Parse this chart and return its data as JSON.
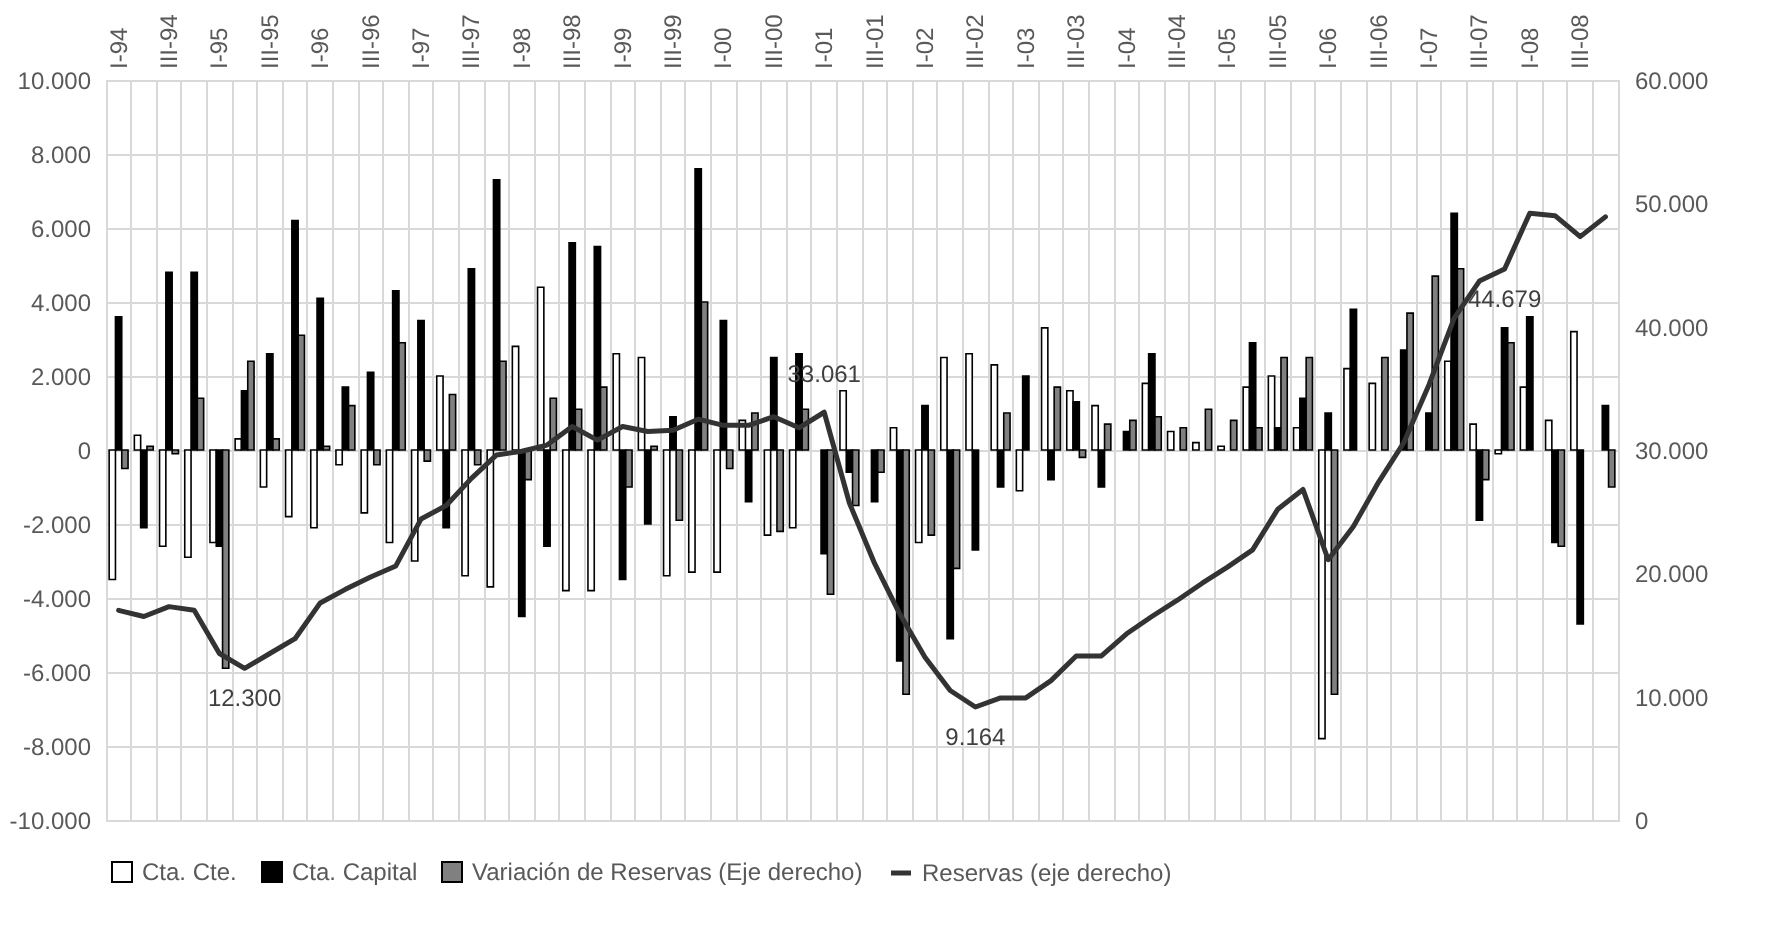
{
  "chart_data": {
    "type": "bar",
    "categories": [
      "I-94",
      null,
      "III-94",
      null,
      "I-95",
      null,
      "III-95",
      null,
      "I-96",
      null,
      "III-96",
      null,
      "I-97",
      null,
      "III-97",
      null,
      "I-98",
      null,
      "III-98",
      null,
      "I-99",
      null,
      "III-99",
      null,
      "I-00",
      null,
      "III-00",
      null,
      "I-01",
      null,
      "III-01",
      null,
      "I-02",
      null,
      "III-02",
      null,
      "I-03",
      null,
      "III-03",
      null,
      "I-04",
      null,
      "III-04",
      null,
      "I-05",
      null,
      "III-05",
      null,
      "I-06",
      null,
      "III-06",
      null,
      "I-07",
      null,
      "III-07",
      null,
      "I-08",
      null,
      "III-08",
      null
    ],
    "series": [
      {
        "name": "Cta. Cte.",
        "color": "#ffffff",
        "values": [
          -3500,
          400,
          -2600,
          -2900,
          -2500,
          300,
          -1000,
          -1800,
          -2100,
          -400,
          -1700,
          -2500,
          -3000,
          2000,
          -3400,
          -3700,
          2800,
          4400,
          -3800,
          -3800,
          2600,
          2500,
          -3400,
          -3300,
          -3300,
          800,
          -2300,
          -2100,
          0,
          1600,
          0,
          600,
          -2500,
          2500,
          2600,
          2300,
          -1100,
          3300,
          1600,
          1200,
          0,
          1800,
          500,
          200,
          100,
          1700,
          2000,
          600,
          -7800,
          2200,
          1800,
          0,
          0,
          2400,
          700,
          -100,
          1700,
          800,
          3200,
          0
        ]
      },
      {
        "name": "Cta. Capital",
        "color": "#000000",
        "values": [
          3600,
          -2100,
          4800,
          4800,
          -2600,
          1600,
          2600,
          6200,
          4100,
          1700,
          2100,
          4300,
          3500,
          -2100,
          4900,
          7300,
          -4500,
          -2600,
          5600,
          5500,
          -3500,
          -2000,
          900,
          7600,
          3500,
          -1400,
          2500,
          2600,
          -2800,
          -600,
          -1400,
          -5700,
          1200,
          -5100,
          -2700,
          -1000,
          2000,
          -800,
          1300,
          -1000,
          500,
          2600,
          0,
          0,
          0,
          2900,
          600,
          1400,
          1000,
          3800,
          0,
          2700,
          1000,
          6400,
          -1900,
          3300,
          3600,
          -2500,
          -4700,
          1200
        ]
      },
      {
        "name": "Variación de Reservas (Eje derecho)",
        "color": "#808080",
        "values": [
          -500,
          100,
          -100,
          1400,
          -5900,
          2400,
          300,
          3100,
          100,
          1200,
          -400,
          2900,
          -300,
          1500,
          -400,
          2400,
          -800,
          1400,
          1100,
          1700,
          -1000,
          100,
          -1900,
          4000,
          -500,
          1000,
          -2200,
          1100,
          -3900,
          -1500,
          -600,
          -6600,
          -2300,
          -3200,
          0,
          1000,
          0,
          1700,
          -200,
          700,
          800,
          900,
          600,
          1100,
          800,
          600,
          2500,
          2500,
          -6600,
          0,
          2500,
          3700,
          4700,
          4900,
          -800,
          2900,
          0,
          -2600,
          0,
          -1000
        ]
      },
      {
        "name": "Reservas (eje derecho)",
        "type": "line",
        "axis": "y2",
        "color": "#333333",
        "values": [
          17000,
          16500,
          17300,
          17000,
          13500,
          12300,
          13500,
          14700,
          17600,
          18700,
          19700,
          20600,
          24400,
          25500,
          27700,
          29600,
          29900,
          30400,
          31900,
          30800,
          31900,
          31500,
          31600,
          32500,
          32000,
          32000,
          32700,
          31800,
          33061,
          25700,
          20800,
          16700,
          13200,
          10500,
          9164,
          9900,
          9900,
          11300,
          13300,
          13300,
          15100,
          16500,
          17800,
          19200,
          20500,
          21900,
          25200,
          26800,
          21100,
          23800,
          27400,
          30600,
          35300,
          40700,
          43700,
          44679,
          49200,
          49000,
          47300,
          48900
        ],
        "value_labels": [
          null,
          null,
          null,
          null,
          null,
          "12.300",
          null,
          null,
          null,
          null,
          null,
          null,
          null,
          null,
          null,
          null,
          null,
          null,
          null,
          null,
          null,
          null,
          null,
          null,
          null,
          null,
          null,
          null,
          "33.061",
          null,
          null,
          null,
          null,
          null,
          "9.164",
          null,
          null,
          null,
          null,
          null,
          null,
          null,
          null,
          null,
          null,
          null,
          null,
          null,
          null,
          null,
          null,
          null,
          null,
          null,
          null,
          "44.679",
          null,
          null,
          null,
          null
        ]
      }
    ],
    "ylim": [
      -10000,
      10000
    ],
    "yticks": [
      {
        "value": -10000,
        "label": "-10.000"
      },
      {
        "value": -8000,
        "label": "-8.000"
      },
      {
        "value": -6000,
        "label": "-6.000"
      },
      {
        "value": -4000,
        "label": "-4.000"
      },
      {
        "value": -2000,
        "label": "-2.000"
      },
      0,
      {
        "value": 2000,
        "label": "2.000"
      },
      {
        "value": 4000,
        "label": "4.000"
      },
      {
        "value": 6000,
        "label": "6.000"
      },
      {
        "value": 8000,
        "label": "8.000"
      },
      {
        "value": 10000,
        "label": "10.000"
      }
    ],
    "y2lim": [
      0,
      60000
    ],
    "y2ticks": [
      0,
      {
        "value": 10000,
        "label": "10.000"
      },
      {
        "value": 20000,
        "label": "20.000"
      },
      {
        "value": 30000,
        "label": "30.000"
      },
      {
        "value": 40000,
        "label": "40.000"
      },
      {
        "value": 50000,
        "label": "50.000"
      },
      {
        "value": 60000,
        "label": "60.000"
      }
    ],
    "grid": true,
    "legend": "bottom"
  }
}
